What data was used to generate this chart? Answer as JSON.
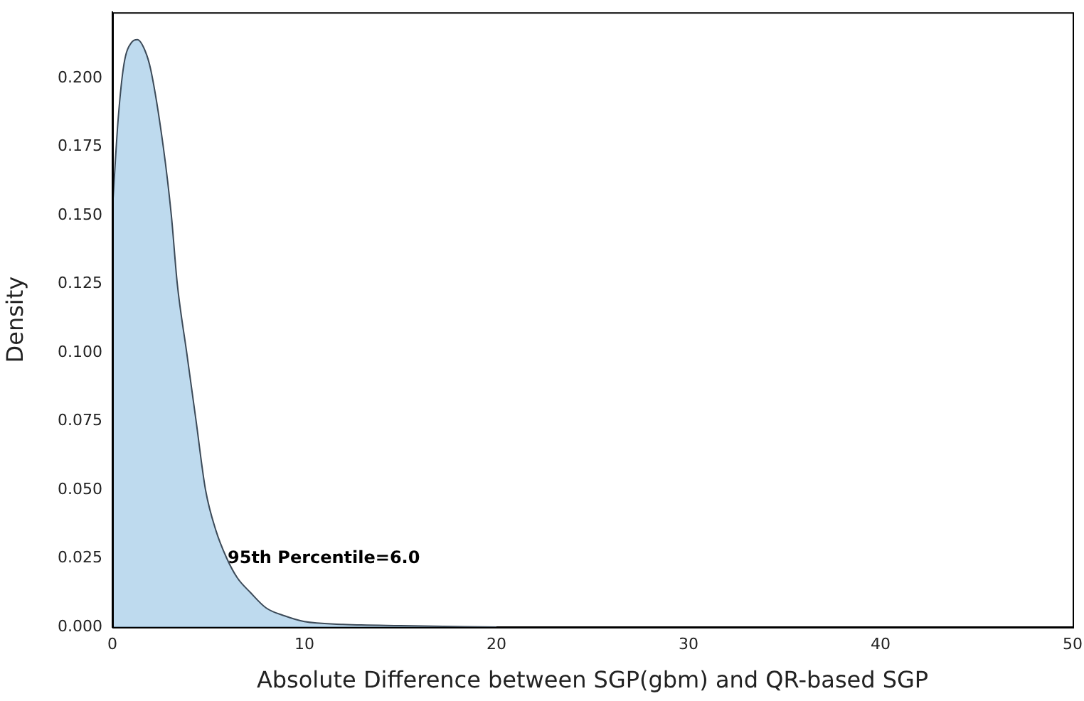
{
  "chart_data": {
    "type": "area",
    "xlabel": "Absolute Difference between SGP(gbm) and QR-based SGP",
    "ylabel": "Density",
    "x": [
      0,
      0.3,
      0.6,
      1.0,
      1.3,
      1.7,
      2.0,
      2.65,
      3.07,
      3.38,
      3.87,
      4.36,
      4.85,
      5.4,
      5.96,
      6.5,
      7.2,
      8.0,
      9.0,
      10.0,
      12.0,
      15.0,
      20.0
    ],
    "series": [
      {
        "color": "#a8cde8",
        "values": [
          0.152,
          0.185,
          0.205,
          0.213,
          0.214,
          0.21,
          0.203,
          0.175,
          0.15,
          0.125,
          0.1,
          0.075,
          0.05,
          0.035,
          0.025,
          0.018,
          0.0125,
          0.007,
          0.004,
          0.002,
          0.001,
          0.0005,
          0
        ]
      }
    ],
    "xlim": [
      0,
      50
    ],
    "xticks": [
      0,
      10,
      20,
      30,
      40,
      50
    ],
    "ylim": [
      0,
      0.224
    ],
    "yticks": [
      {
        "value": 0,
        "label": "0.000"
      },
      {
        "value": 0.025,
        "label": "0.025"
      },
      {
        "value": 0.05,
        "label": "0.050"
      },
      {
        "value": 0.075,
        "label": "0.075"
      },
      {
        "value": 0.1,
        "label": "0.100"
      },
      {
        "value": 0.125,
        "label": "0.125"
      },
      {
        "value": 0.15,
        "label": "0.150"
      },
      {
        "value": 0.175,
        "label": "0.175"
      },
      {
        "value": 0.2,
        "label": "0.200"
      }
    ],
    "annotations": [
      {
        "text": "95th Percentile=6.0",
        "x": 6.0,
        "y": 0.025
      }
    ],
    "grid": false,
    "legend": false
  }
}
